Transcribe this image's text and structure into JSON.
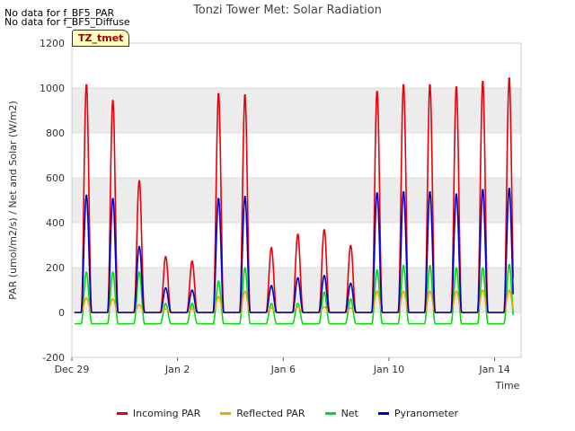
{
  "notes": [
    "No data for f_BF5_PAR",
    "No data for f_BF5_Diffuse"
  ],
  "badge": "TZ_tmet",
  "chart_data": {
    "type": "line",
    "title": "Tonzi Tower Met: Solar Radiation",
    "xlabel": "Time",
    "ylabel": "PAR (umol/m2/s) / Net and Solar (W/m2)",
    "ylim": [
      -200,
      1200
    ],
    "yticks": [
      -200,
      0,
      200,
      400,
      600,
      800,
      1000,
      1200
    ],
    "xlim": [
      0,
      17
    ],
    "xticks": [
      {
        "x": 0,
        "label": "Dec 29"
      },
      {
        "x": 4,
        "label": "Jan 2"
      },
      {
        "x": 8,
        "label": "Jan 6"
      },
      {
        "x": 12,
        "label": "Jan 10"
      },
      {
        "x": 16,
        "label": "Jan 14"
      }
    ],
    "x_unit": "days since Dec 29 (approx daily peaks)",
    "grid": "horizontal bands",
    "legend_position": "bottom",
    "daily_peaks": {
      "day_centers": [
        0.55,
        1.55,
        2.55,
        3.55,
        4.55,
        5.55,
        6.55,
        7.55,
        8.55,
        9.55,
        10.55,
        11.55,
        12.55,
        13.55,
        14.55,
        15.55,
        16.55
      ],
      "series": [
        {
          "name": "Incoming PAR",
          "color": "#e8000b",
          "values": [
            1020,
            950,
            590,
            250,
            230,
            980,
            975,
            290,
            350,
            370,
            300,
            990,
            1020,
            1020,
            1010,
            1035,
            1050
          ]
        },
        {
          "name": "Reflected PAR",
          "color": "#f0a500",
          "values": [
            65,
            60,
            35,
            15,
            15,
            70,
            95,
            20,
            25,
            25,
            20,
            95,
            95,
            95,
            95,
            100,
            100
          ]
        },
        {
          "name": "Net",
          "color": "#00dd00",
          "values": [
            180,
            180,
            180,
            40,
            40,
            140,
            200,
            40,
            40,
            90,
            60,
            190,
            210,
            210,
            200,
            200,
            215
          ]
        },
        {
          "name": "Pyranometer",
          "color": "#0000cc",
          "values": [
            525,
            510,
            295,
            110,
            100,
            510,
            520,
            120,
            155,
            165,
            130,
            535,
            540,
            540,
            530,
            550,
            555
          ]
        }
      ],
      "night_values": {
        "Incoming PAR": 0,
        "Reflected PAR": 0,
        "Net": -50,
        "Pyranometer": 0
      }
    }
  }
}
